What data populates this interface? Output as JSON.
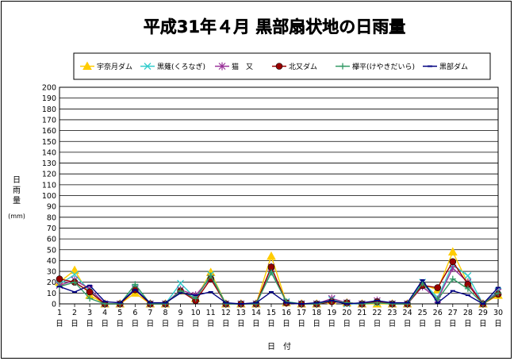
{
  "chart_data": {
    "type": "line",
    "title": "平成31年４月  黒部扇状地の日雨量",
    "ylabel": "日\n雨\n量\n\n(mm)",
    "xlabel": "日　付",
    "ylim": [
      0,
      200
    ],
    "yticks": [
      0,
      10,
      20,
      30,
      40,
      50,
      60,
      70,
      80,
      90,
      100,
      110,
      120,
      130,
      140,
      150,
      160,
      170,
      180,
      190,
      200
    ],
    "x": [
      1,
      2,
      3,
      4,
      5,
      6,
      7,
      8,
      9,
      10,
      11,
      12,
      13,
      14,
      15,
      16,
      17,
      18,
      19,
      20,
      21,
      22,
      23,
      24,
      25,
      26,
      27,
      28,
      29,
      30
    ],
    "x_suffix": "日",
    "grid": true,
    "legend_position": "top",
    "series": [
      {
        "name": "宇奈月ダム",
        "color": "#ffcc00",
        "marker": "triangle",
        "values": [
          20,
          31,
          8,
          0,
          0,
          10,
          0,
          0,
          12,
          5,
          29,
          0,
          0,
          0,
          44,
          1,
          0,
          0,
          3,
          1,
          0,
          0,
          0,
          0,
          18,
          13,
          48,
          19,
          0,
          8
        ]
      },
      {
        "name": "黒薙(くろなぎ)",
        "color": "#33cccc",
        "marker": "x",
        "values": [
          18,
          27,
          12,
          0,
          0,
          15,
          0,
          0,
          19,
          5,
          27,
          0,
          0,
          0,
          30,
          2,
          0,
          0,
          4,
          0,
          0,
          1,
          0,
          0,
          20,
          6,
          36,
          26,
          0,
          12
        ]
      },
      {
        "name": "猫　又",
        "color": "#993399",
        "marker": "star",
        "values": [
          17,
          22,
          14,
          0,
          0,
          14,
          0,
          0,
          13,
          8,
          24,
          0,
          0,
          0,
          34,
          1,
          0,
          0,
          5,
          1,
          0,
          3,
          0,
          0,
          16,
          4,
          33,
          20,
          0,
          11
        ]
      },
      {
        "name": "北又ダム",
        "color": "#990000",
        "marker": "circle",
        "values": [
          23,
          20,
          11,
          0,
          0,
          13,
          0,
          0,
          12,
          3,
          23,
          0,
          0,
          0,
          34,
          1,
          0,
          0,
          2,
          1,
          0,
          2,
          0,
          0,
          17,
          15,
          39,
          18,
          0,
          9
        ]
      },
      {
        "name": "欅平(けやきだいら)",
        "color": "#339966",
        "marker": "plus",
        "values": [
          16,
          20,
          5,
          0,
          0,
          18,
          0,
          0,
          12,
          5,
          26,
          0,
          0,
          0,
          29,
          2,
          0,
          0,
          3,
          1,
          0,
          1,
          0,
          0,
          19,
          4,
          23,
          14,
          0,
          10
        ]
      },
      {
        "name": "黒部ダム",
        "color": "#000080",
        "marker": "dash",
        "values": [
          16,
          11,
          17,
          2,
          1,
          13,
          1,
          1,
          10,
          8,
          11,
          1,
          0,
          1,
          11,
          1,
          0,
          1,
          3,
          0,
          1,
          3,
          1,
          1,
          22,
          1,
          12,
          8,
          0,
          15
        ]
      }
    ]
  }
}
